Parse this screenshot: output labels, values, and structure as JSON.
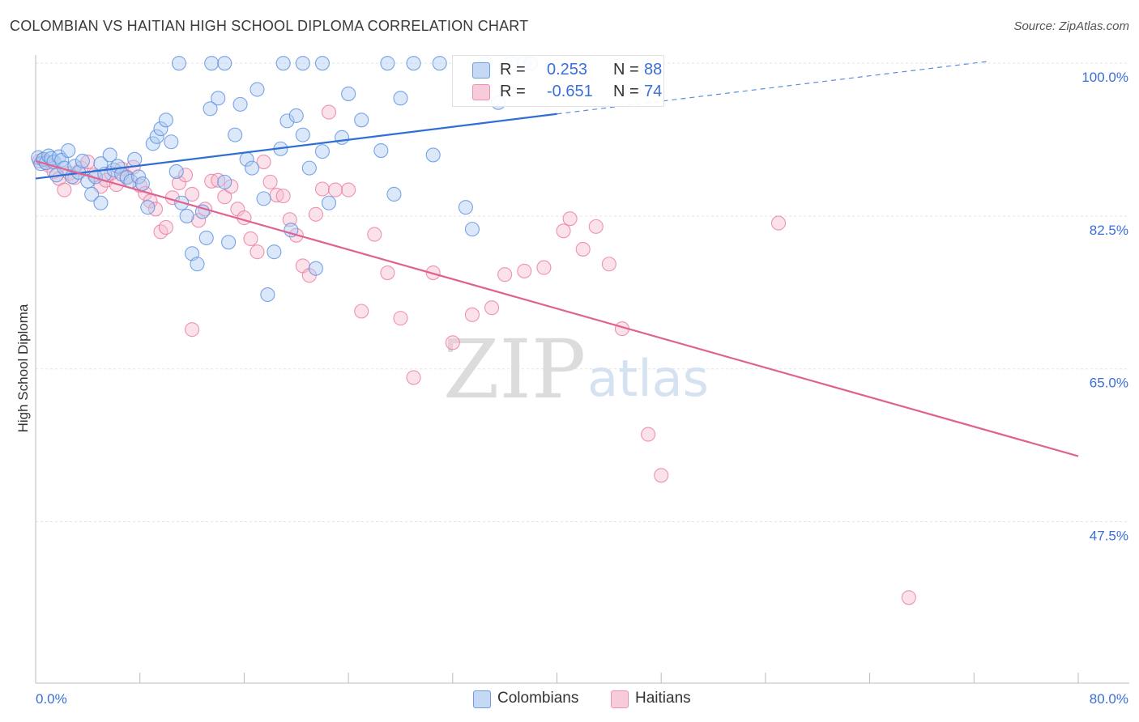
{
  "chart_data": {
    "type": "scatter",
    "title": "COLOMBIAN VS HAITIAN HIGH SCHOOL DIPLOMA CORRELATION CHART",
    "source": "Source: ZipAtlas.com",
    "ylabel": "High School Diploma",
    "xlim": [
      0,
      80
    ],
    "ylim": [
      29,
      101.5
    ],
    "x_tick_labels": [
      "0.0%",
      "80.0%"
    ],
    "y_ticks": [
      47.5,
      65.0,
      82.5,
      100.0
    ],
    "y_tick_labels": [
      "47.5%",
      "65.0%",
      "82.5%",
      "100.0%"
    ],
    "watermark": {
      "zip": "ZIP",
      "atlas": "atlas"
    },
    "legend": [
      {
        "r_label": "R =",
        "r_value": "0.253",
        "n_label": "N =",
        "n_value": "88"
      },
      {
        "r_label": "R =",
        "r_value": "-0.651",
        "n_label": "N =",
        "n_value": "74"
      }
    ],
    "colors": {
      "colombians": "#5b8ee0",
      "colombians_fill": "#aecbf2",
      "haitians": "#e8739a",
      "haitians_fill": "#f6bdd0",
      "axis_text": "#3a6fd8",
      "grid": "#e3e3e3"
    },
    "series": [
      {
        "name": "Colombians",
        "trend": {
          "x0": 0,
          "y0": 86.8,
          "x1": 40,
          "y1": 94.2,
          "dash_x1": 73,
          "dash_y1": 100.2
        },
        "points": [
          [
            0.2,
            89.2
          ],
          [
            0.4,
            88.5
          ],
          [
            0.6,
            89.0
          ],
          [
            0.8,
            88.6
          ],
          [
            1.0,
            89.4
          ],
          [
            1.2,
            89.1
          ],
          [
            1.4,
            88.7
          ],
          [
            1.6,
            87.2
          ],
          [
            1.8,
            89.3
          ],
          [
            2.0,
            88.9
          ],
          [
            2.2,
            88.0
          ],
          [
            2.5,
            90.0
          ],
          [
            2.8,
            87.0
          ],
          [
            3.0,
            88.2
          ],
          [
            3.3,
            87.5
          ],
          [
            3.6,
            88.8
          ],
          [
            4.0,
            86.5
          ],
          [
            4.3,
            85.0
          ],
          [
            4.6,
            87.0
          ],
          [
            5.0,
            88.5
          ],
          [
            5.3,
            87.3
          ],
          [
            5.7,
            89.5
          ],
          [
            6.0,
            87.8
          ],
          [
            6.3,
            88.2
          ],
          [
            6.6,
            87.3
          ],
          [
            7.0,
            86.9
          ],
          [
            7.3,
            86.5
          ],
          [
            7.6,
            89.0
          ],
          [
            7.9,
            87.0
          ],
          [
            8.2,
            86.2
          ],
          [
            8.6,
            83.5
          ],
          [
            9.0,
            90.8
          ],
          [
            9.3,
            91.6
          ],
          [
            9.6,
            92.5
          ],
          [
            10.0,
            93.5
          ],
          [
            10.4,
            91.0
          ],
          [
            10.8,
            87.6
          ],
          [
            11.2,
            84.0
          ],
          [
            11.6,
            82.5
          ],
          [
            12.0,
            78.2
          ],
          [
            12.4,
            77.0
          ],
          [
            12.8,
            83.0
          ],
          [
            13.1,
            80.0
          ],
          [
            13.4,
            94.8
          ],
          [
            14.0,
            96.0
          ],
          [
            14.5,
            86.4
          ],
          [
            14.8,
            79.5
          ],
          [
            15.3,
            91.8
          ],
          [
            15.7,
            95.3
          ],
          [
            16.2,
            89.0
          ],
          [
            16.6,
            88.0
          ],
          [
            17.0,
            97.0
          ],
          [
            17.5,
            84.5
          ],
          [
            17.8,
            73.5
          ],
          [
            18.3,
            78.4
          ],
          [
            18.8,
            90.2
          ],
          [
            19.3,
            93.4
          ],
          [
            19.6,
            80.9
          ],
          [
            20.0,
            94.0
          ],
          [
            20.5,
            91.8
          ],
          [
            21.0,
            88.0
          ],
          [
            21.5,
            76.5
          ],
          [
            22.0,
            89.9
          ],
          [
            22.5,
            84.0
          ],
          [
            23.5,
            91.5
          ],
          [
            24.0,
            96.5
          ],
          [
            25.0,
            93.5
          ],
          [
            26.5,
            90.0
          ],
          [
            27.5,
            85.0
          ],
          [
            28.0,
            96.0
          ],
          [
            30.5,
            89.5
          ],
          [
            33.0,
            83.5
          ],
          [
            35.5,
            95.5
          ],
          [
            36.5,
            100.0
          ],
          [
            37.5,
            100.0
          ],
          [
            38.0,
            100.0
          ],
          [
            34.5,
            100.0
          ],
          [
            31.0,
            100.0
          ],
          [
            29.0,
            100.0
          ],
          [
            27.0,
            100.0
          ],
          [
            22.0,
            100.0
          ],
          [
            20.5,
            100.0
          ],
          [
            19.0,
            100.0
          ],
          [
            11.0,
            100.0
          ],
          [
            13.5,
            100.0
          ],
          [
            14.5,
            100.0
          ],
          [
            33.5,
            81.0
          ],
          [
            5.0,
            84.0
          ]
        ]
      },
      {
        "name": "Haitians",
        "trend": {
          "x0": 0,
          "y0": 88.8,
          "x1": 80,
          "y1": 55.0
        },
        "points": [
          [
            0.3,
            88.8
          ],
          [
            0.6,
            89.0
          ],
          [
            1.0,
            88.3
          ],
          [
            1.4,
            87.6
          ],
          [
            1.8,
            86.8
          ],
          [
            2.2,
            85.5
          ],
          [
            2.6,
            87.4
          ],
          [
            3.0,
            86.9
          ],
          [
            3.5,
            88.0
          ],
          [
            4.0,
            88.7
          ],
          [
            4.5,
            87.2
          ],
          [
            5.0,
            85.9
          ],
          [
            5.4,
            86.6
          ],
          [
            5.8,
            87.4
          ],
          [
            6.2,
            86.1
          ],
          [
            6.6,
            87.9
          ],
          [
            7.0,
            87.0
          ],
          [
            7.5,
            88.1
          ],
          [
            8.0,
            86.0
          ],
          [
            8.4,
            85.1
          ],
          [
            8.8,
            84.2
          ],
          [
            9.2,
            83.3
          ],
          [
            9.6,
            80.7
          ],
          [
            10.0,
            81.2
          ],
          [
            10.5,
            84.6
          ],
          [
            11.0,
            86.3
          ],
          [
            11.5,
            87.2
          ],
          [
            12.0,
            85.0
          ],
          [
            12.5,
            82.0
          ],
          [
            13.0,
            83.3
          ],
          [
            13.5,
            86.5
          ],
          [
            14.0,
            86.6
          ],
          [
            14.5,
            84.7
          ],
          [
            15.0,
            85.9
          ],
          [
            15.5,
            83.3
          ],
          [
            16.0,
            82.3
          ],
          [
            16.5,
            79.9
          ],
          [
            17.0,
            78.4
          ],
          [
            17.5,
            88.7
          ],
          [
            18.0,
            86.4
          ],
          [
            18.5,
            84.9
          ],
          [
            19.0,
            84.8
          ],
          [
            19.5,
            82.1
          ],
          [
            20.0,
            80.3
          ],
          [
            20.5,
            76.8
          ],
          [
            21.0,
            75.7
          ],
          [
            21.5,
            82.7
          ],
          [
            22.0,
            85.6
          ],
          [
            22.5,
            94.4
          ],
          [
            23.0,
            85.5
          ],
          [
            24.0,
            85.5
          ],
          [
            25.0,
            71.6
          ],
          [
            26.0,
            80.4
          ],
          [
            27.0,
            76.0
          ],
          [
            28.0,
            70.8
          ],
          [
            29.0,
            64.0
          ],
          [
            30.5,
            76.0
          ],
          [
            32.0,
            68.0
          ],
          [
            33.5,
            71.2
          ],
          [
            35.0,
            72.0
          ],
          [
            36.0,
            75.8
          ],
          [
            37.5,
            76.2
          ],
          [
            39.0,
            76.6
          ],
          [
            40.5,
            80.8
          ],
          [
            41.0,
            82.2
          ],
          [
            42.0,
            78.7
          ],
          [
            43.0,
            81.3
          ],
          [
            44.0,
            77.0
          ],
          [
            45.0,
            69.6
          ],
          [
            47.0,
            57.5
          ],
          [
            48.0,
            52.8
          ],
          [
            57.0,
            81.7
          ],
          [
            67.0,
            38.8
          ],
          [
            12.0,
            69.5
          ]
        ]
      }
    ]
  },
  "bottom_legend": [
    {
      "label": "Colombians"
    },
    {
      "label": "Haitians"
    }
  ]
}
